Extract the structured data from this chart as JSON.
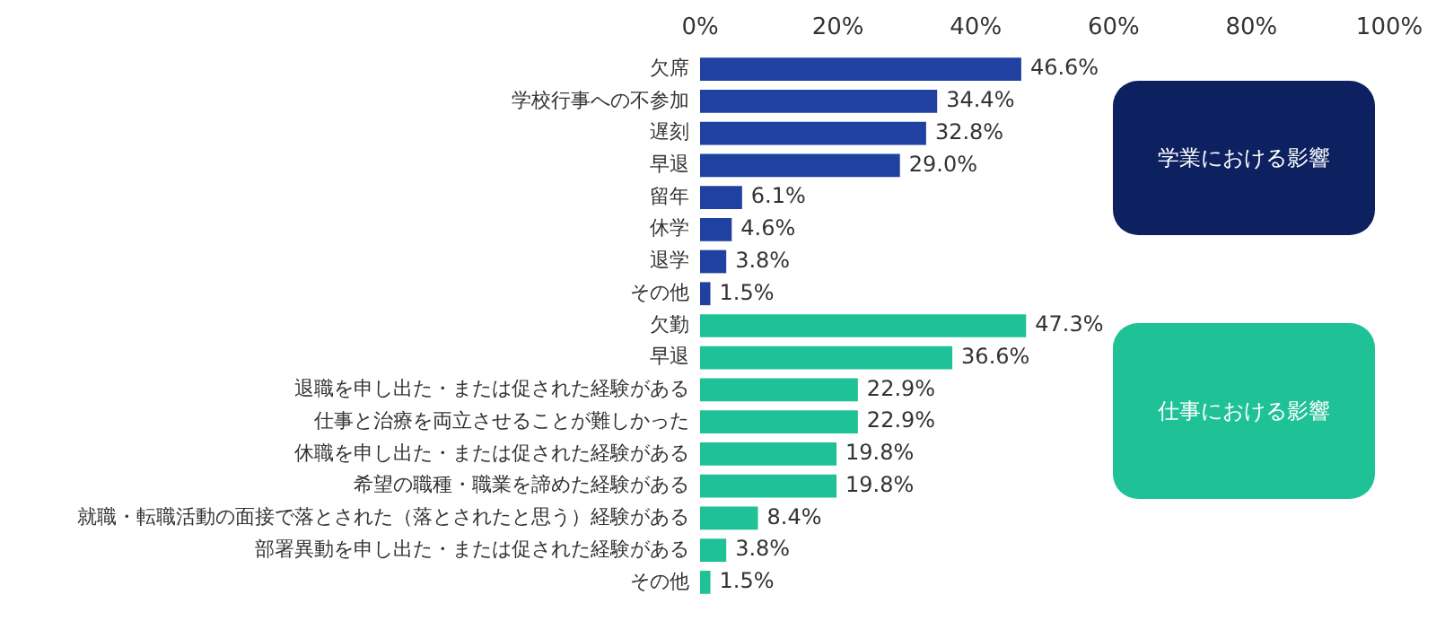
{
  "chart_data": {
    "type": "bar",
    "orientation": "horizontal",
    "categories": [
      "欠席",
      "学校行事への不参加",
      "遅刻",
      "早退",
      "留年",
      "休学",
      "退学",
      "その他",
      "欠勤",
      "早退",
      "退職を申し出た・または促された経験がある",
      "仕事と治療を両立させることが難しかった",
      "休職を申し出た・または促された経験がある",
      "希望の職種・職業を諦めた経験がある",
      "就職・転職活動の面接で落とされた（落とされたと思う）経験がある",
      "部署異動を申し出た・または促された経験がある",
      "その他"
    ],
    "values": [
      46.6,
      34.4,
      32.8,
      29.0,
      6.1,
      4.6,
      3.8,
      1.5,
      47.3,
      36.6,
      22.9,
      22.9,
      19.8,
      19.8,
      8.4,
      3.8,
      1.5
    ],
    "value_labels": [
      "46.6%",
      "34.4%",
      "32.8%",
      "29.0%",
      "6.1%",
      "4.6%",
      "3.8%",
      "1.5%",
      "47.3%",
      "36.6%",
      "22.9%",
      "22.9%",
      "19.8%",
      "19.8%",
      "8.4%",
      "3.8%",
      "1.5%"
    ],
    "colors": [
      "#2141a0",
      "#2141a0",
      "#2141a0",
      "#2141a0",
      "#2141a0",
      "#2141a0",
      "#2141a0",
      "#2141a0",
      "#1fc197",
      "#1fc197",
      "#1fc197",
      "#1fc197",
      "#1fc197",
      "#1fc197",
      "#1fc197",
      "#1fc197",
      "#1fc197"
    ],
    "xlim": [
      0,
      100
    ],
    "xticks": [
      {
        "value": 0,
        "label": "0%"
      },
      {
        "value": 20,
        "label": "20%"
      },
      {
        "value": 40,
        "label": "40%"
      },
      {
        "value": 60,
        "label": "60%"
      },
      {
        "value": 80,
        "label": "80%"
      },
      {
        "value": 100,
        "label": "100%"
      }
    ],
    "grid": false,
    "legend": false,
    "annotations": [
      "学業における影響",
      "仕事における影響"
    ]
  }
}
